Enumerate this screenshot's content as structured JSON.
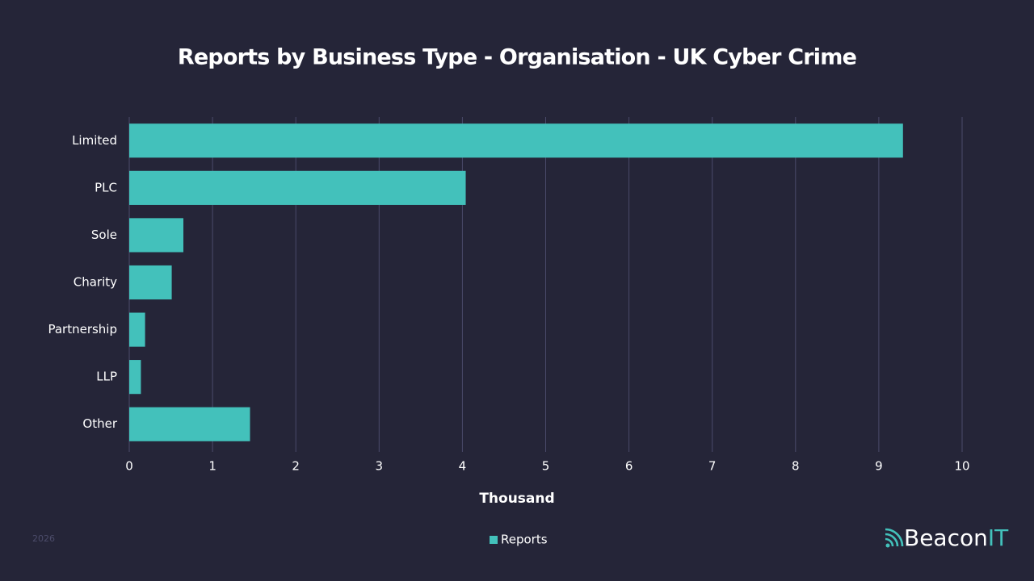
{
  "chart_data": {
    "type": "bar",
    "orientation": "horizontal",
    "title": "Reports by Business Type - Organisation - UK Cyber Crime",
    "categories": [
      "Limited",
      "PLC",
      "Sole",
      "Charity",
      "Partnership",
      "LLP",
      "Other"
    ],
    "series": [
      {
        "name": "Reports",
        "color": "#43c1bb",
        "values": [
          9.29,
          4.04,
          0.65,
          0.51,
          0.19,
          0.14,
          1.45
        ]
      }
    ],
    "xlabel": "Thousand",
    "xlim": [
      0,
      10
    ],
    "xticks": [
      0,
      1,
      2,
      3,
      4,
      5,
      6,
      7,
      8,
      9,
      10
    ],
    "grid": true,
    "legend": "bottom"
  },
  "footer": {
    "year": "2026",
    "brand": "Beacon",
    "brand_accent": "IT"
  }
}
